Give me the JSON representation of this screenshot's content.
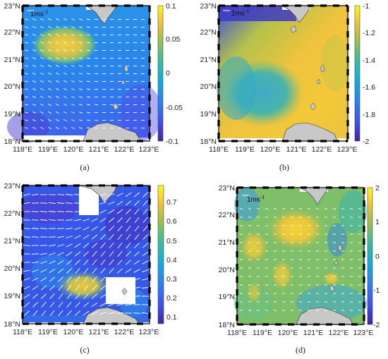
{
  "figure": {
    "panels": [
      {
        "caption": "(a)",
        "scale_label": "1ms",
        "scale_exp": "-1",
        "x_ticks": [
          "118°E",
          "119°E",
          "120°E",
          "121°E",
          "122°E",
          "123°E"
        ],
        "y_ticks": [
          "18°N",
          "19°N",
          "20°N",
          "21°N",
          "22°N",
          "23°N"
        ],
        "colorbar": {
          "ticks": [
            "0.1",
            "0.05",
            "0",
            "-0.05",
            "-0.1"
          ],
          "range": [
            -0.1,
            0.1
          ],
          "colormap": "parula"
        }
      },
      {
        "caption": "(b)",
        "scale_label": "1ms",
        "scale_exp": "-1",
        "x_ticks": [
          "118°E",
          "119°E",
          "120°E",
          "121°E",
          "122°E",
          "123°E"
        ],
        "y_ticks": [
          "18°N",
          "19°N",
          "20°N",
          "21°N",
          "22°N",
          "23°N"
        ],
        "colorbar": {
          "ticks": [
            "-1",
            "-1.2",
            "-1.4",
            "-1.6",
            "-1.8",
            "-2"
          ],
          "range": [
            -2,
            -1
          ],
          "colormap": "parula"
        }
      },
      {
        "caption": "(c)",
        "scale_label": "",
        "scale_exp": "",
        "x_ticks": [
          "118°E",
          "119°E",
          "120°E",
          "121°E",
          "122°E",
          "123°E"
        ],
        "y_ticks": [
          "18°N",
          "19°N",
          "20°N",
          "21°N",
          "22°N",
          "23°N"
        ],
        "colorbar": {
          "ticks": [
            "0.7",
            "0.6",
            "0.5",
            "0.4",
            "0.3",
            "0.2",
            "0.1"
          ],
          "range": [
            0.05,
            0.77
          ],
          "colormap": "parula"
        }
      },
      {
        "caption": "(d)",
        "scale_label": "1ms",
        "scale_exp": "-1",
        "x_ticks": [
          "118°E",
          "119°E",
          "120°E",
          "121°E",
          "122°E",
          "123°E"
        ],
        "y_ticks": [
          "18°N",
          "19°N",
          "20°N",
          "21°N",
          "22°N",
          "23°N"
        ],
        "colorbar": {
          "ticks": [
            "2",
            "1",
            "0",
            "-1",
            "-2"
          ],
          "range": [
            -2,
            2
          ],
          "colormap": "parula"
        }
      }
    ]
  }
}
